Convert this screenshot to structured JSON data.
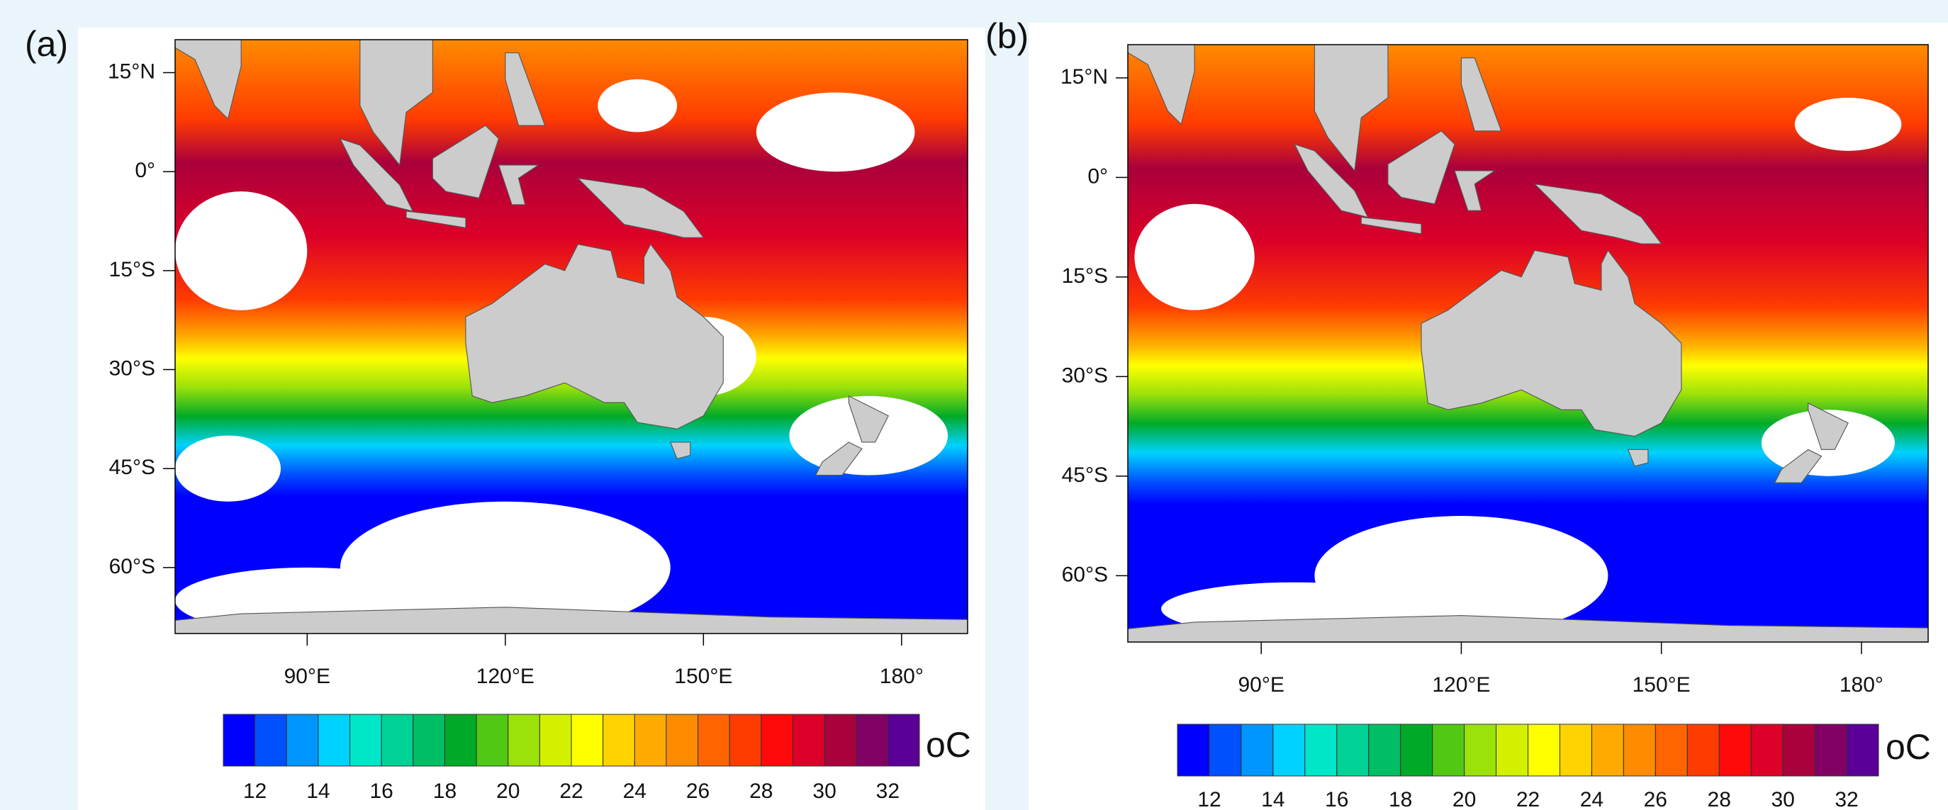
{
  "panels": [
    {
      "label": "(a)",
      "xlim": [
        70,
        190
      ],
      "ylim": [
        -70,
        20
      ],
      "xticks": [
        {
          "value": 90,
          "label": "90°E"
        },
        {
          "value": 120,
          "label": "120°E"
        },
        {
          "value": 150,
          "label": "150°E"
        },
        {
          "value": 180,
          "label": "180°"
        }
      ],
      "yticks": [
        {
          "value": 15,
          "label": "15°N"
        },
        {
          "value": 0,
          "label": "0°"
        },
        {
          "value": -15,
          "label": "15°S"
        },
        {
          "value": -30,
          "label": "30°S"
        },
        {
          "value": -45,
          "label": "45°S"
        },
        {
          "value": -60,
          "label": "60°S"
        }
      ]
    },
    {
      "label": "(b)",
      "xlim": [
        70,
        190
      ],
      "ylim": [
        -70,
        20
      ],
      "xticks": [
        {
          "value": 90,
          "label": "90°E"
        },
        {
          "value": 120,
          "label": "120°E"
        },
        {
          "value": 150,
          "label": "150°E"
        },
        {
          "value": 180,
          "label": "180°"
        }
      ],
      "yticks": [
        {
          "value": 15,
          "label": "15°N"
        },
        {
          "value": 0,
          "label": "0°"
        },
        {
          "value": -15,
          "label": "15°S"
        },
        {
          "value": -30,
          "label": "30°S"
        },
        {
          "value": -45,
          "label": "45°S"
        },
        {
          "value": -60,
          "label": "60°S"
        }
      ]
    }
  ],
  "colorbar": {
    "range": [
      11,
      33
    ],
    "ticks": [
      12,
      14,
      16,
      18,
      20,
      22,
      24,
      26,
      28,
      30,
      32
    ],
    "unit": "oC",
    "colors": [
      "#0000ff",
      "#0050ff",
      "#0096ff",
      "#00d2ff",
      "#00e6c8",
      "#00d296",
      "#00be64",
      "#00aa28",
      "#50c814",
      "#9be10a",
      "#d2f000",
      "#ffff00",
      "#ffd200",
      "#ffaa00",
      "#ff8c00",
      "#ff6400",
      "#ff3c00",
      "#ff0a0a",
      "#dc0028",
      "#aa003c",
      "#820064",
      "#5a0096"
    ]
  }
}
